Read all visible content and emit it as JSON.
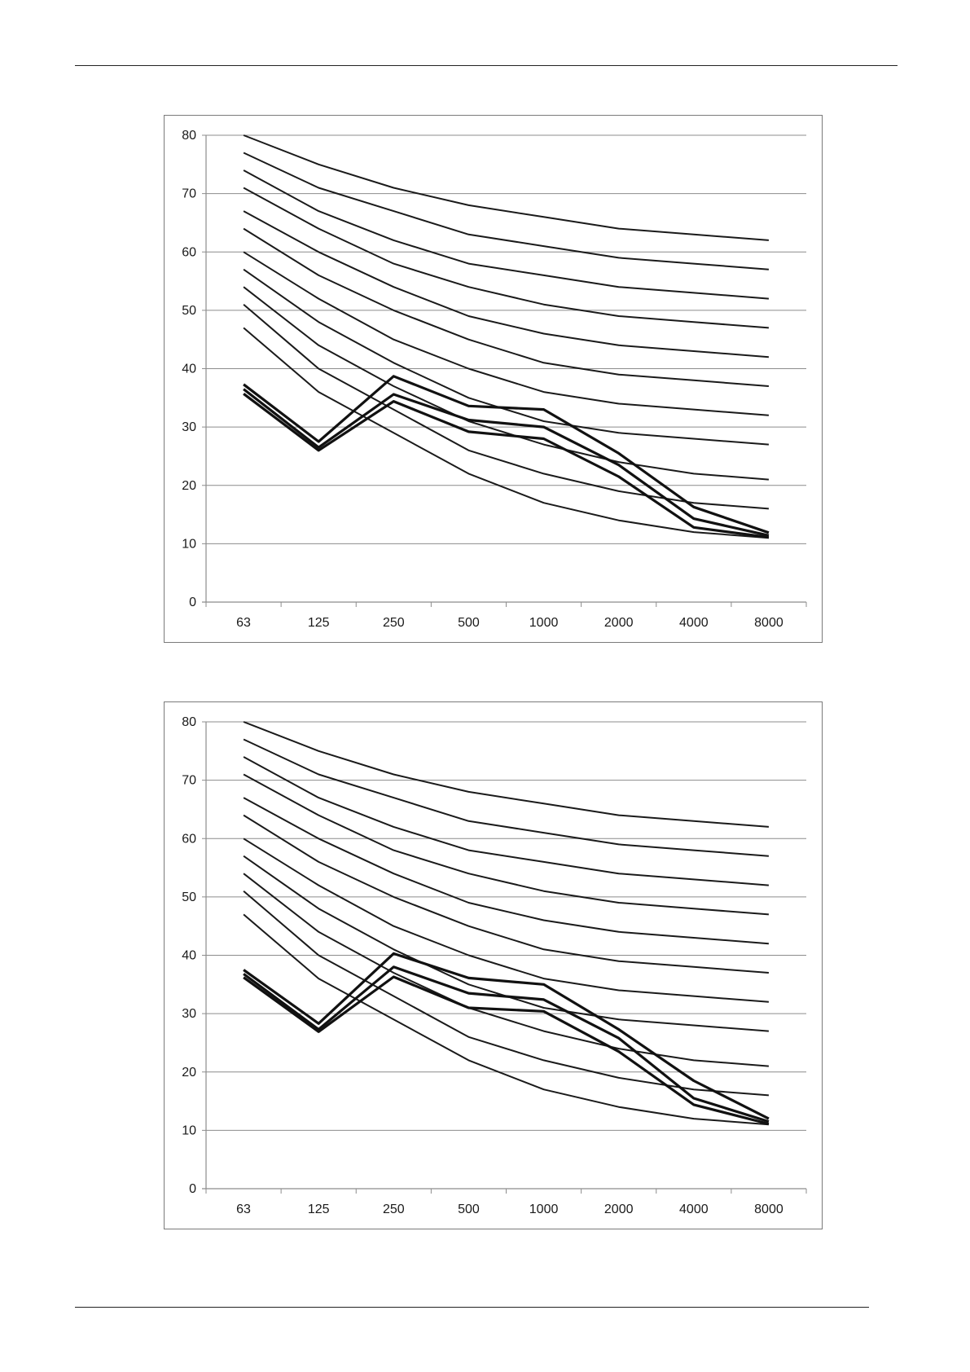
{
  "chart_data": [
    {
      "type": "line",
      "title": "",
      "xlabel": "",
      "ylabel": "",
      "categories": [
        "63",
        "125",
        "250",
        "500",
        "1000",
        "2000",
        "4000",
        "8000"
      ],
      "ylim": [
        0,
        80
      ],
      "yticks": [
        0,
        10,
        20,
        30,
        40,
        50,
        60,
        70,
        80
      ],
      "grid": "horizontal",
      "legend": "none",
      "line_color": "#1a1a1a",
      "curves": [
        {
          "values": [
            80,
            75,
            71,
            68,
            66,
            64,
            63,
            62
          ]
        },
        {
          "values": [
            77,
            71,
            67,
            63,
            61,
            59,
            58,
            57
          ]
        },
        {
          "values": [
            74,
            67,
            62,
            58,
            56,
            54,
            53,
            52
          ]
        },
        {
          "values": [
            71,
            64,
            58,
            54,
            51,
            49,
            48,
            47
          ]
        },
        {
          "values": [
            67,
            60,
            54,
            49,
            46,
            44,
            43,
            42
          ]
        },
        {
          "values": [
            64,
            56,
            50,
            45,
            41,
            39,
            38,
            37
          ]
        },
        {
          "values": [
            60,
            52,
            45,
            40,
            36,
            34,
            33,
            32
          ]
        },
        {
          "values": [
            57,
            48,
            41,
            35,
            31,
            29,
            28,
            27
          ]
        },
        {
          "values": [
            54,
            44,
            37,
            31,
            27,
            24,
            22,
            21
          ]
        },
        {
          "values": [
            51,
            40,
            33,
            26,
            22,
            19,
            17,
            16
          ]
        },
        {
          "values": [
            47,
            36,
            29,
            22,
            17,
            14,
            12,
            11
          ]
        }
      ],
      "measured": [
        {
          "values": [
            37.3,
            27.5,
            38.7,
            33.6,
            33.0,
            25.5,
            16.3,
            11.9
          ]
        },
        {
          "values": [
            36.5,
            26.5,
            35.6,
            31.2,
            30.0,
            23.5,
            14.3,
            11.4
          ]
        },
        {
          "values": [
            35.7,
            26.0,
            34.4,
            29.2,
            28.0,
            21.5,
            12.8,
            11.1
          ]
        }
      ]
    },
    {
      "type": "line",
      "title": "",
      "xlabel": "",
      "ylabel": "",
      "categories": [
        "63",
        "125",
        "250",
        "500",
        "1000",
        "2000",
        "4000",
        "8000"
      ],
      "ylim": [
        0,
        80
      ],
      "yticks": [
        0,
        10,
        20,
        30,
        40,
        50,
        60,
        70,
        80
      ],
      "grid": "horizontal",
      "legend": "none",
      "line_color": "#1a1a1a",
      "curves": [
        {
          "values": [
            80,
            75,
            71,
            68,
            66,
            64,
            63,
            62
          ]
        },
        {
          "values": [
            77,
            71,
            67,
            63,
            61,
            59,
            58,
            57
          ]
        },
        {
          "values": [
            74,
            67,
            62,
            58,
            56,
            54,
            53,
            52
          ]
        },
        {
          "values": [
            71,
            64,
            58,
            54,
            51,
            49,
            48,
            47
          ]
        },
        {
          "values": [
            67,
            60,
            54,
            49,
            46,
            44,
            43,
            42
          ]
        },
        {
          "values": [
            64,
            56,
            50,
            45,
            41,
            39,
            38,
            37
          ]
        },
        {
          "values": [
            60,
            52,
            45,
            40,
            36,
            34,
            33,
            32
          ]
        },
        {
          "values": [
            57,
            48,
            41,
            35,
            31,
            29,
            28,
            27
          ]
        },
        {
          "values": [
            54,
            44,
            37,
            31,
            27,
            24,
            22,
            21
          ]
        },
        {
          "values": [
            51,
            40,
            33,
            26,
            22,
            19,
            17,
            16
          ]
        },
        {
          "values": [
            47,
            36,
            29,
            22,
            17,
            14,
            12,
            11
          ]
        }
      ],
      "measured": [
        {
          "values": [
            37.5,
            28.3,
            40.3,
            36.1,
            35.0,
            27.3,
            18.5,
            12.0
          ]
        },
        {
          "values": [
            36.8,
            27.3,
            38.0,
            33.5,
            32.4,
            25.8,
            15.5,
            11.5
          ]
        },
        {
          "values": [
            36.2,
            26.9,
            36.3,
            31.0,
            30.4,
            23.5,
            14.4,
            11.1
          ]
        }
      ]
    }
  ]
}
